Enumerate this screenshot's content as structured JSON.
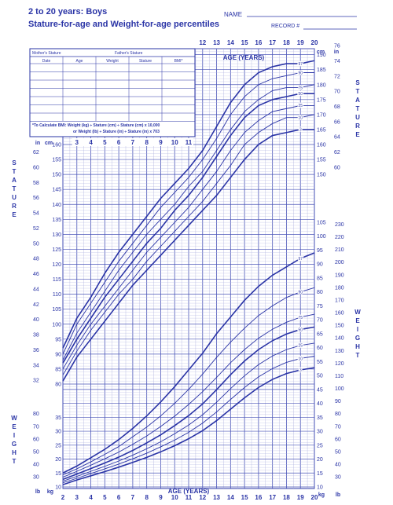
{
  "header": {
    "title": "2 to 20 years: Boys",
    "subtitle": "Stature-for-age and Weight-for-age percentiles",
    "name_label": "NAME",
    "record_label": "RECORD #"
  },
  "record_table": {
    "mother_label": "Mother's Stature",
    "father_label": "Father's Stature",
    "columns": [
      "Date",
      "Age",
      "Weight",
      "Stature",
      "BMI*"
    ],
    "bmi_title": "*To Calculate BMI:",
    "bmi_line1": "Weight (kg) ÷ Stature (cm) ÷ Stature (cm) x 10,000",
    "bmi_line2": "or Weight (lb) ÷ Stature (in) ÷ Stature (in) x 703"
  },
  "colors": {
    "ink": "#2a34a6",
    "grid_minor": "#aeb2e0",
    "grid_major": "#4a55b8",
    "background": "#ffffff"
  },
  "chart_data": [
    {
      "type": "line",
      "title": "Stature-for-age",
      "xlabel": "AGE (YEARS)",
      "ylabel": "STATURE",
      "unit_left": "in",
      "unit_right": "cm",
      "xlim": [
        2,
        20
      ],
      "ylim": [
        80,
        190
      ],
      "x_ticks": [
        2,
        3,
        4,
        5,
        6,
        7,
        8,
        9,
        10,
        11,
        12,
        13,
        14,
        15,
        16,
        17,
        18,
        19,
        20
      ],
      "y_ticks_cm": [
        80,
        85,
        90,
        95,
        100,
        105,
        110,
        115,
        120,
        125,
        130,
        135,
        140,
        145,
        150,
        155,
        160,
        165,
        170,
        175,
        180,
        185,
        190
      ],
      "y_ticks_in": [
        32,
        34,
        36,
        38,
        40,
        42,
        44,
        46,
        48,
        50,
        52,
        54,
        56,
        58,
        60,
        62,
        64,
        66,
        68,
        70,
        72,
        74,
        76
      ],
      "x": [
        2,
        3,
        4,
        5,
        6,
        7,
        8,
        9,
        10,
        11,
        12,
        13,
        14,
        15,
        16,
        17,
        18,
        19,
        20
      ],
      "series": [
        {
          "name": "97",
          "values": [
            92,
            102,
            109,
            117,
            124,
            130,
            136,
            142,
            147,
            152,
            158,
            166,
            174,
            180,
            184,
            186,
            187,
            187,
            188
          ]
        },
        {
          "name": "90",
          "values": [
            90,
            100,
            107,
            114,
            121,
            127,
            133,
            139,
            144,
            149,
            155,
            162,
            170,
            176,
            180,
            182,
            183,
            184,
            184
          ]
        },
        {
          "name": "75",
          "values": [
            88,
            97,
            104,
            111,
            118,
            124,
            130,
            135,
            140,
            146,
            151,
            158,
            165,
            171,
            175,
            178,
            179,
            179,
            180
          ]
        },
        {
          "name": "50",
          "values": [
            87,
            95,
            102,
            109,
            115,
            121,
            127,
            132,
            138,
            143,
            149,
            156,
            163,
            169,
            173,
            175,
            176,
            177,
            177
          ]
        },
        {
          "name": "25",
          "values": [
            85,
            93,
            100,
            106,
            112,
            118,
            124,
            129,
            134,
            139,
            145,
            151,
            158,
            164,
            168,
            171,
            172,
            173,
            173
          ]
        },
        {
          "name": "10",
          "values": [
            83,
            91,
            98,
            104,
            110,
            115,
            121,
            126,
            131,
            136,
            141,
            147,
            153,
            160,
            164,
            167,
            169,
            169,
            170
          ]
        },
        {
          "name": "3",
          "values": [
            81,
            89,
            95,
            101,
            107,
            113,
            118,
            123,
            128,
            133,
            138,
            143,
            149,
            155,
            160,
            163,
            164,
            165,
            165
          ]
        }
      ]
    },
    {
      "type": "line",
      "title": "Weight-for-age",
      "xlabel": "AGE (YEARS)",
      "ylabel": "WEIGHT",
      "unit_left": "lb",
      "unit_right": "kg",
      "xlim": [
        2,
        20
      ],
      "ylim": [
        10,
        105
      ],
      "y_ticks_kg": [
        10,
        15,
        20,
        25,
        30,
        35,
        40,
        45,
        50,
        55,
        60,
        65,
        70,
        75,
        80,
        85,
        90,
        95,
        100,
        105
      ],
      "y_ticks_lb": [
        30,
        40,
        50,
        60,
        70,
        80,
        90,
        100,
        110,
        120,
        130,
        140,
        150,
        160,
        170,
        180,
        190,
        200,
        210,
        220,
        230
      ],
      "x": [
        2,
        3,
        4,
        5,
        6,
        7,
        8,
        9,
        10,
        11,
        12,
        13,
        14,
        15,
        16,
        17,
        18,
        19,
        20
      ],
      "series": [
        {
          "name": "97",
          "values": [
            15.0,
            17.5,
            20.5,
            23.5,
            27,
            31,
            35.5,
            40.5,
            46,
            52,
            58,
            65,
            71,
            77,
            82,
            86,
            89,
            92,
            94
          ]
        },
        {
          "name": "90",
          "values": [
            14.3,
            16.5,
            19.0,
            21.7,
            24.5,
            28,
            31.5,
            35.5,
            40,
            45,
            50.5,
            56.5,
            62,
            67,
            71.5,
            75,
            78,
            80,
            81.5
          ]
        },
        {
          "name": "75",
          "values": [
            13.5,
            15.6,
            17.8,
            20.1,
            22.5,
            25.3,
            28.3,
            31.7,
            35.4,
            39.6,
            44.2,
            49.3,
            54.6,
            59.3,
            63.4,
            66.6,
            69.1,
            70.9,
            72
          ]
        },
        {
          "name": "50",
          "values": [
            12.7,
            14.6,
            16.6,
            18.6,
            20.7,
            23.1,
            25.8,
            28.7,
            32,
            35.6,
            39.8,
            44.9,
            50.3,
            55.2,
            59.3,
            62.5,
            64.9,
            66.5,
            67.4
          ]
        },
        {
          "name": "25",
          "values": [
            12.1,
            13.8,
            15.6,
            17.4,
            19.3,
            21.4,
            23.7,
            26.2,
            29.1,
            32.2,
            35.9,
            40.4,
            45.3,
            49.9,
            53.9,
            57,
            59.3,
            60.8,
            61.6
          ]
        },
        {
          "name": "10",
          "values": [
            11.5,
            13.1,
            14.8,
            16.5,
            18.2,
            20.1,
            22.1,
            24.4,
            26.8,
            29.6,
            32.9,
            36.9,
            41.4,
            45.7,
            49.5,
            52.5,
            54.7,
            56.1,
            56.9
          ]
        },
        {
          "name": "3",
          "values": [
            10.8,
            12.5,
            14.0,
            15.5,
            17.1,
            18.8,
            20.6,
            22.6,
            24.8,
            27.3,
            30.2,
            33.8,
            37.9,
            42,
            45.7,
            48.6,
            50.7,
            52,
            52.8
          ]
        }
      ]
    }
  ]
}
